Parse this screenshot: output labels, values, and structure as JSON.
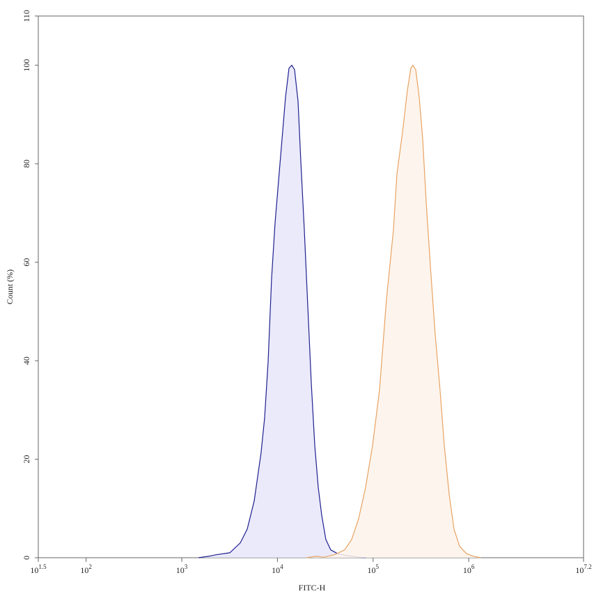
{
  "chart_data": {
    "type": "area",
    "xlabel": "FITC-H",
    "ylabel": "Count (%)",
    "xscale": "log",
    "xlim": [
      31.6227766,
      15848931.92
    ],
    "xticks": [
      {
        "value": 31.6227766,
        "label": "10^1.5"
      },
      {
        "value": 100,
        "label": "10^2"
      },
      {
        "value": 1000,
        "label": "10^3"
      },
      {
        "value": 10000,
        "label": "10^4"
      },
      {
        "value": 100000,
        "label": "10^5"
      },
      {
        "value": 1000000,
        "label": "10^6"
      },
      {
        "value": 15848931.92,
        "label": "10^7.2"
      }
    ],
    "ylim": [
      0,
      110
    ],
    "yticks": [
      0,
      20,
      40,
      60,
      80,
      100,
      110
    ],
    "grid": false,
    "series": [
      {
        "color": "#1f1f8f",
        "fill": "#e6e6fa",
        "x": [
          1493,
          1920,
          2271,
          3177,
          4083,
          4831,
          5715,
          6745,
          7345,
          7980,
          8690,
          9440,
          10260,
          11170,
          12140,
          13210,
          14120,
          15100,
          16410,
          17540,
          19090,
          20750,
          22570,
          24540,
          26680,
          29030,
          32070,
          36060,
          42660,
          54830,
          70570,
          83400
        ],
        "values": [
          0,
          0.3,
          0.6,
          1.0,
          3.0,
          5.8,
          11.5,
          21.3,
          28.4,
          39.7,
          56.7,
          68.0,
          76.5,
          85.0,
          93.5,
          99.4,
          100,
          99.1,
          92.7,
          80.7,
          66.6,
          51.0,
          35.5,
          22.8,
          14.3,
          8.6,
          3.7,
          1.6,
          0.8,
          0.4,
          0.1,
          0
        ]
      },
      {
        "color": "#e8a262",
        "fill": "#fdf3ea",
        "x": [
          20090,
          25820,
          30540,
          39260,
          50470,
          59700,
          70570,
          83400,
          98630,
          116700,
          138000,
          163200,
          177400,
          202800,
          228000,
          248300,
          260600,
          279200,
          303400,
          329800,
          358900,
          396300,
          445700,
          501200,
          554600,
          623700,
          701500,
          801700,
          948400,
          1122000,
          1327000
        ],
        "values": [
          0,
          0.3,
          0.1,
          0.6,
          1.6,
          3.7,
          7.9,
          14.3,
          22.8,
          34.1,
          52.5,
          66.6,
          77.9,
          86.4,
          94.9,
          99.4,
          100,
          99.1,
          93.5,
          85.0,
          72.2,
          59.5,
          45.4,
          34.1,
          22.8,
          12.9,
          5.8,
          2.3,
          0.8,
          0.3,
          0
        ]
      }
    ]
  }
}
